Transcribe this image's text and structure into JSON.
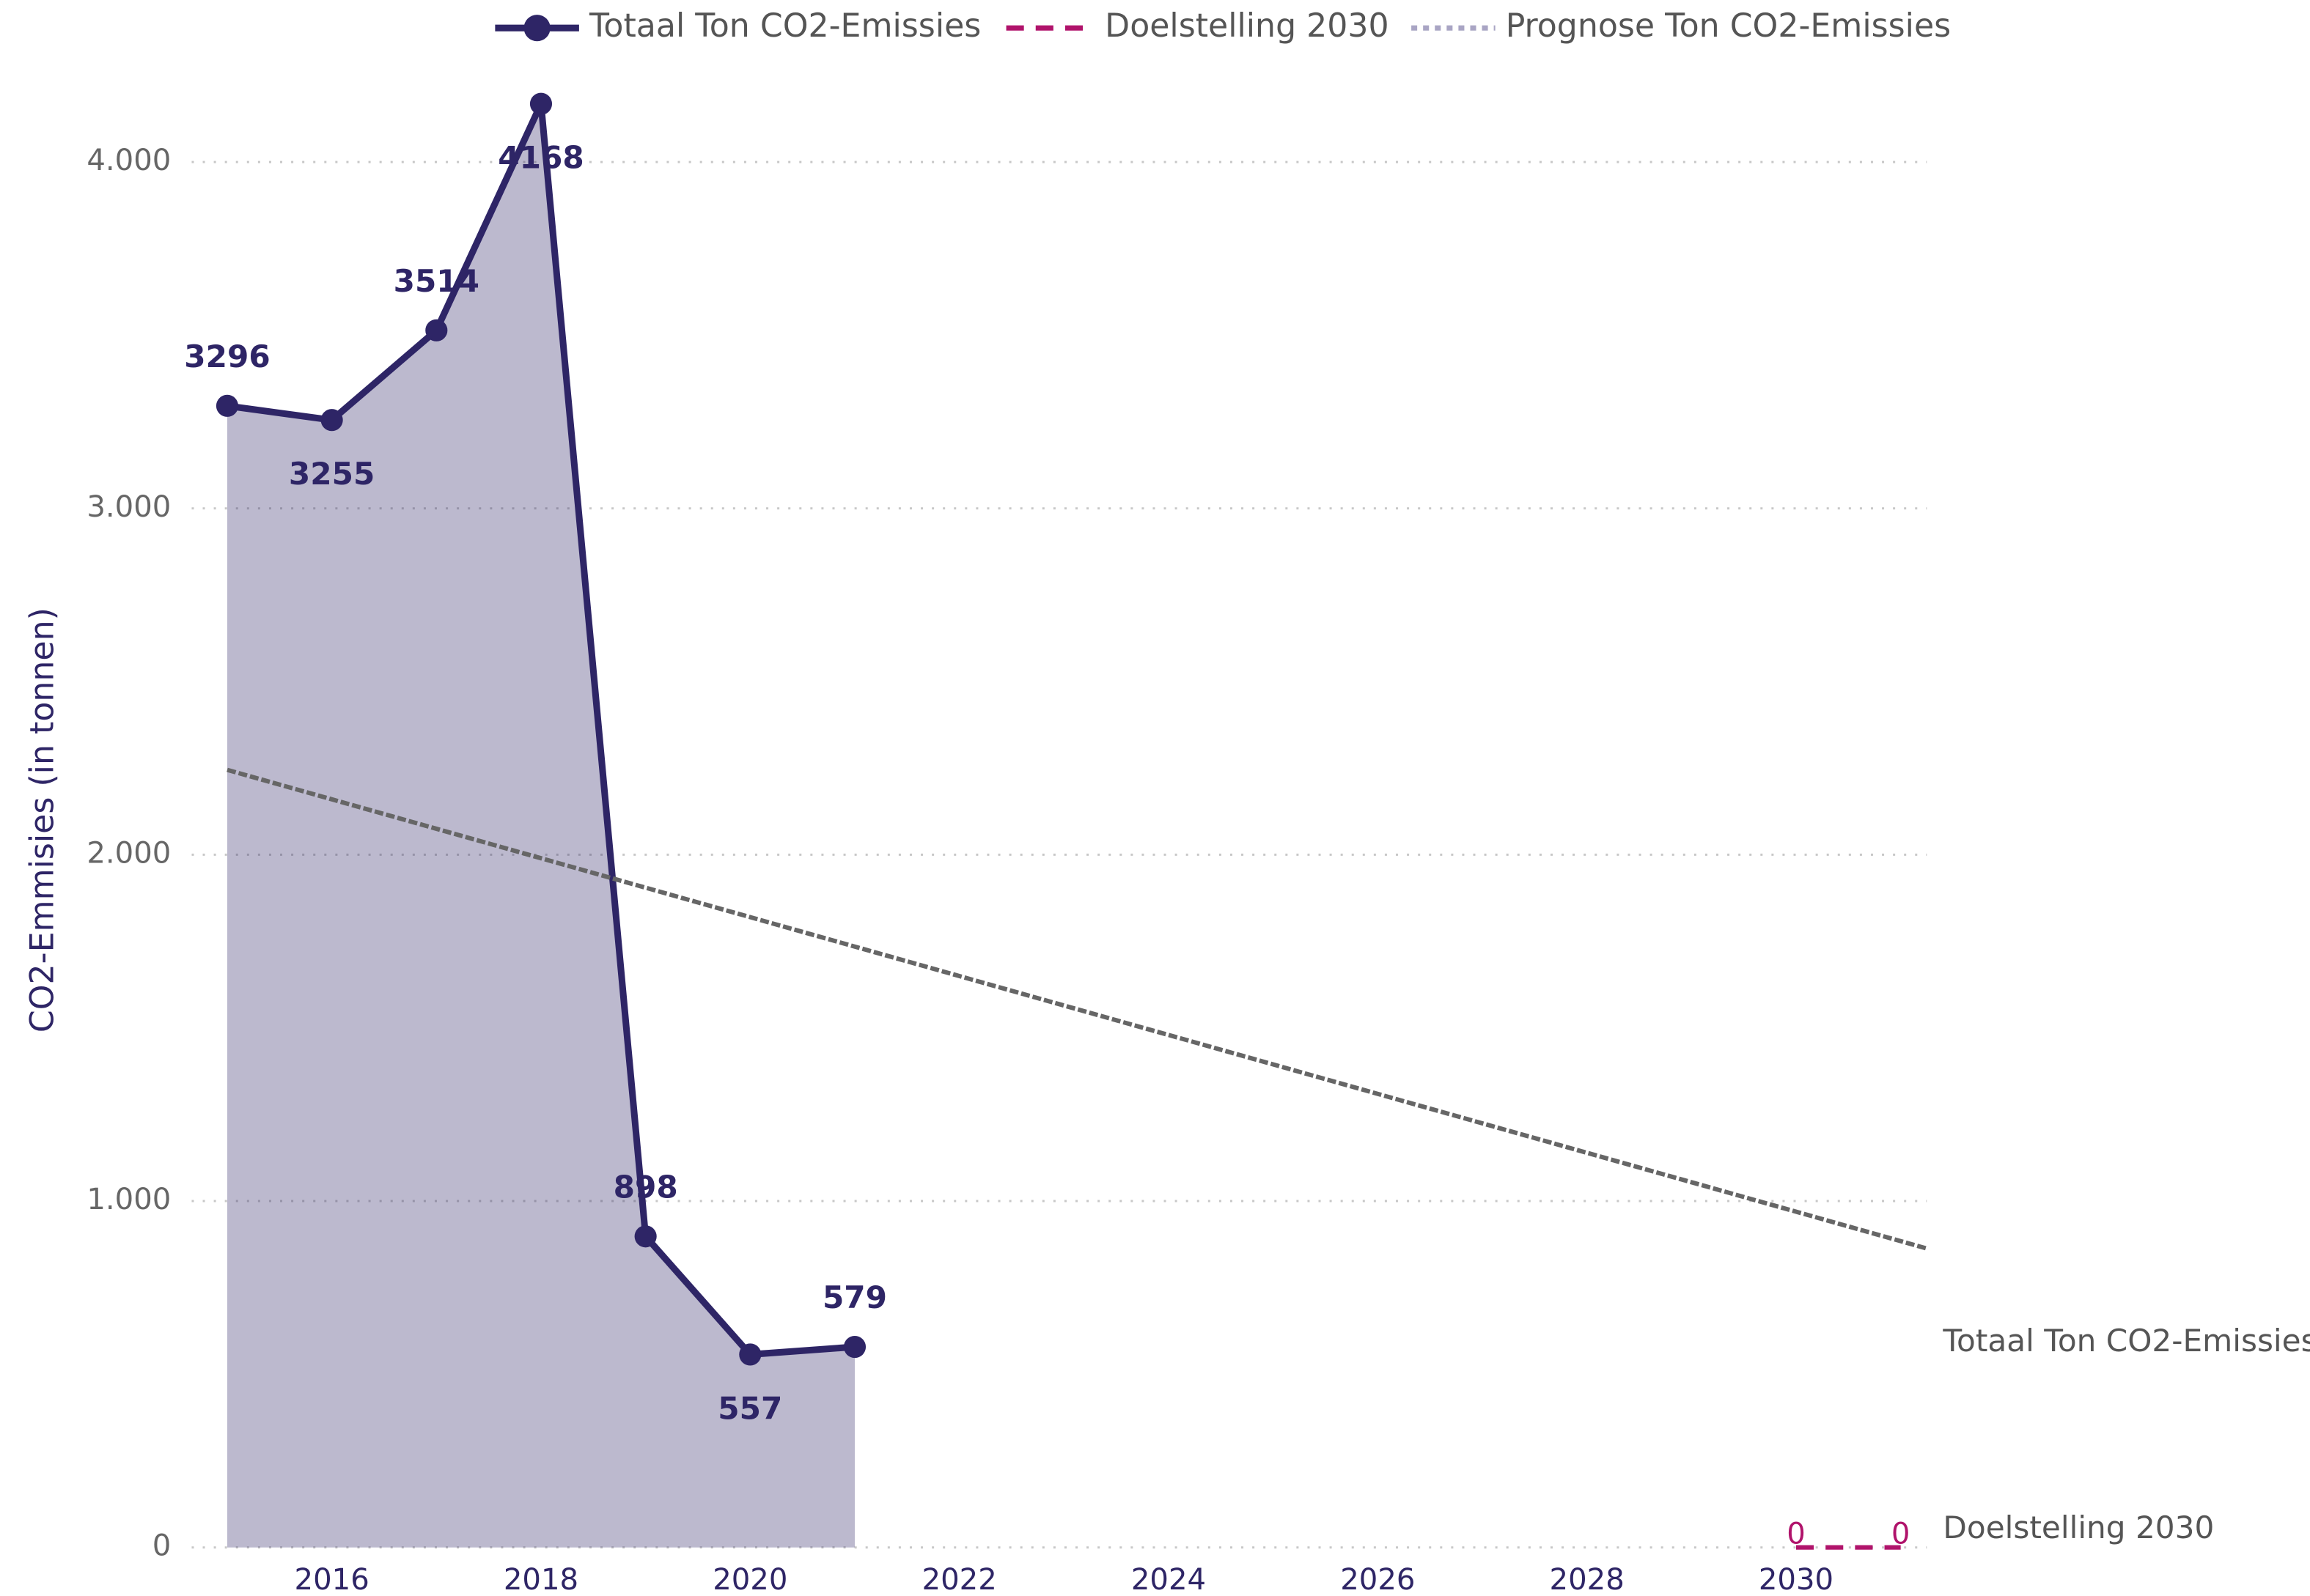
{
  "chart_data": {
    "type": "line",
    "y_axis_label": "CO2-Emmisies (in tonnen)",
    "xlim": [
      2014.66,
      2031.25
    ],
    "xticks": [
      2016,
      2018,
      2020,
      2022,
      2024,
      2026,
      2028,
      2030
    ],
    "ylim": [
      0,
      4200
    ],
    "yticks": [
      0,
      {
        "value": 1000,
        "label": "1.000"
      },
      {
        "value": 2000,
        "label": "2.000"
      },
      {
        "value": 3000,
        "label": "3.000"
      },
      {
        "value": 4000,
        "label": "4.000"
      }
    ],
    "grid": true,
    "legend": "top",
    "series": [
      {
        "name": "Totaal Ton CO2-Emissies",
        "color": "#2e2566",
        "style": "solid",
        "markers": true,
        "area": true,
        "x": [
          2015,
          2016,
          2017,
          2018,
          2019,
          2020,
          2021
        ],
        "values": [
          3296,
          3255,
          3514,
          4168,
          898,
          557,
          579
        ],
        "data_labels": true
      },
      {
        "name": "Doelstelling 2030",
        "color": "#b0136b",
        "style": "dashed",
        "x": [
          2030,
          2031
        ],
        "values": [
          0,
          0
        ],
        "data_labels": true
      },
      {
        "name": "Prognose Ton CO2-Emissies",
        "color": "#a9a5c4",
        "line_color": "#666666",
        "style": "dotted",
        "x": [
          2015,
          2031.25
        ],
        "values": [
          2245,
          863
        ]
      }
    ],
    "annotations": [
      "Totaal Ton CO2-Emissies",
      "Doelstelling 2030"
    ]
  }
}
